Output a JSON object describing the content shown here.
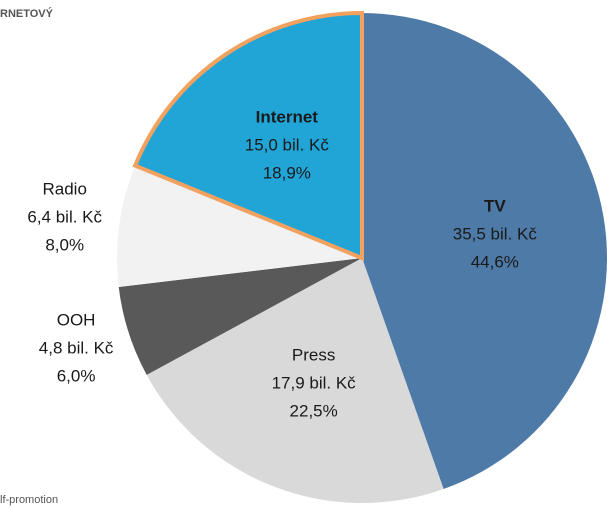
{
  "header_fragment": "RNETOVÝ",
  "footer_fragment": "lf-promotion",
  "chart_data": {
    "type": "pie",
    "categories": [
      "TV",
      "Press",
      "OOH",
      "Radio",
      "Internet"
    ],
    "values": [
      35.5,
      17.9,
      4.8,
      6.4,
      15.0
    ],
    "value_labels": [
      "35,5 bil. Kč",
      "17,9 bil. Kč",
      "4,8 bil. Kč",
      "6,4 bil. Kč",
      "15,0 bil. Kč"
    ],
    "percents": [
      44.6,
      22.5,
      6.0,
      8.0,
      18.9
    ],
    "percent_labels": [
      "44,6%",
      "22,5%",
      "6,0%",
      "8,0%",
      "18,9%"
    ],
    "colors": [
      "#4e7aa8",
      "#d9d9d9",
      "#595959",
      "#f2f2f2",
      "#21a5d6"
    ],
    "highlighted": "Internet"
  }
}
